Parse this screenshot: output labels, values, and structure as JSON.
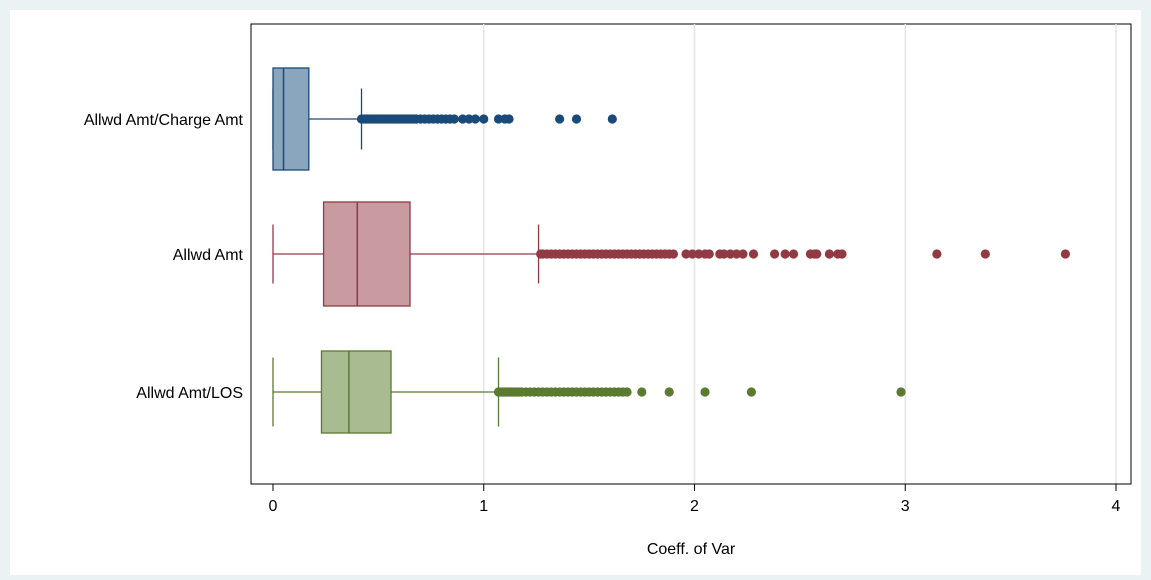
{
  "chart_data": {
    "type": "boxplot",
    "orientation": "horizontal",
    "xlabel": "Coeff. of Var",
    "ylabel": "",
    "xlim": [
      -0.1,
      4.05
    ],
    "xticks": [
      0,
      1,
      2,
      3,
      4
    ],
    "xtick_labels": [
      "0",
      "1",
      "2",
      "3",
      "4"
    ],
    "grid": true,
    "legend": "none",
    "series": [
      {
        "name": "Allwd Amt/Charge Amt",
        "color": "#1a4a7a",
        "fill": "#8aa6bf",
        "min": 0,
        "q1": 0,
        "median": 0.05,
        "q3": 0.17,
        "whisker_high": 0.42,
        "outliers": [
          0.42,
          0.43,
          0.44,
          0.45,
          0.46,
          0.47,
          0.48,
          0.49,
          0.5,
          0.51,
          0.52,
          0.53,
          0.54,
          0.55,
          0.56,
          0.57,
          0.58,
          0.59,
          0.6,
          0.61,
          0.62,
          0.63,
          0.64,
          0.65,
          0.66,
          0.67,
          0.68,
          0.7,
          0.72,
          0.74,
          0.76,
          0.78,
          0.8,
          0.82,
          0.84,
          0.86,
          0.9,
          0.93,
          0.96,
          1.0,
          1.07,
          1.1,
          1.12,
          1.36,
          1.44,
          1.61
        ]
      },
      {
        "name": "Allwd Amt",
        "color": "#923a44",
        "fill": "#c99aa0",
        "min": 0,
        "q1": 0.24,
        "median": 0.4,
        "q3": 0.65,
        "whisker_high": 1.26,
        "outliers": [
          1.27,
          1.28,
          1.3,
          1.32,
          1.34,
          1.36,
          1.38,
          1.4,
          1.42,
          1.44,
          1.46,
          1.48,
          1.5,
          1.52,
          1.54,
          1.56,
          1.58,
          1.6,
          1.62,
          1.64,
          1.66,
          1.68,
          1.7,
          1.72,
          1.74,
          1.76,
          1.78,
          1.8,
          1.82,
          1.84,
          1.86,
          1.88,
          1.9,
          1.96,
          1.99,
          2.02,
          2.05,
          2.07,
          2.12,
          2.14,
          2.17,
          2.2,
          2.23,
          2.28,
          2.38,
          2.43,
          2.47,
          2.55,
          2.57,
          2.58,
          2.64,
          2.68,
          2.7,
          3.15,
          3.38,
          3.76
        ]
      },
      {
        "name": "Allwd Amt/LOS",
        "color": "#5a7a30",
        "fill": "#a9bb90",
        "min": 0,
        "q1": 0.23,
        "median": 0.36,
        "q3": 0.56,
        "whisker_high": 1.07,
        "outliers": [
          1.07,
          1.08,
          1.09,
          1.1,
          1.11,
          1.12,
          1.13,
          1.14,
          1.15,
          1.16,
          1.17,
          1.18,
          1.2,
          1.22,
          1.24,
          1.26,
          1.28,
          1.3,
          1.32,
          1.34,
          1.36,
          1.38,
          1.4,
          1.42,
          1.44,
          1.46,
          1.48,
          1.5,
          1.52,
          1.54,
          1.56,
          1.58,
          1.6,
          1.62,
          1.64,
          1.66,
          1.68,
          1.75,
          1.88,
          2.05,
          2.27,
          2.98
        ]
      }
    ]
  }
}
